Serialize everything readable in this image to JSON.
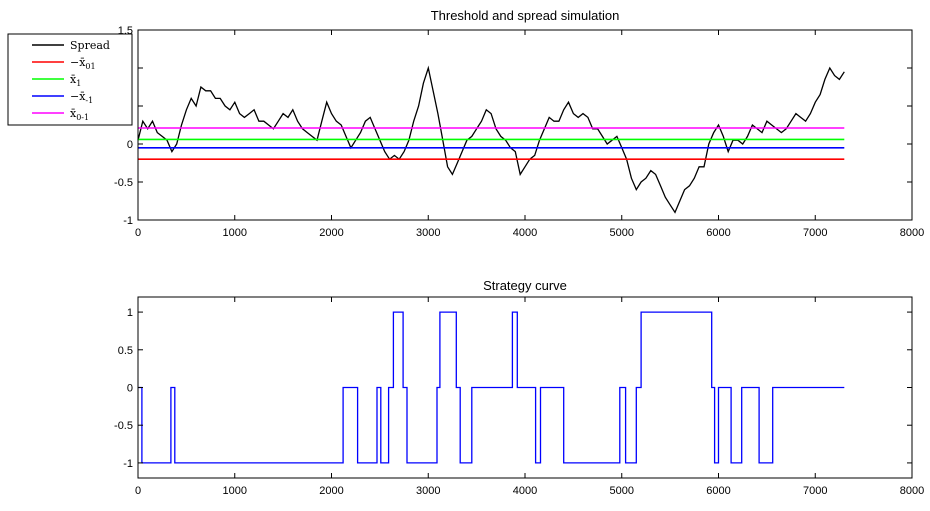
{
  "chart_data": [
    {
      "type": "line",
      "title": "Threshold and spread simulation",
      "xlabel": "",
      "ylabel": "",
      "xlim": [
        0,
        8000
      ],
      "ylim": [
        -1,
        1.5
      ],
      "xticks": [
        "0",
        "1000",
        "2000",
        "3000",
        "4000",
        "5000",
        "6000",
        "7000",
        "8000"
      ],
      "yticks": [
        "-1",
        "-0.5",
        "0",
        "0.5",
        "1",
        "1.5"
      ],
      "legend_position": "outside-top-left",
      "grid": false,
      "series": [
        {
          "name": "Spread",
          "color": "#000000",
          "x": [
            0,
            50,
            100,
            150,
            200,
            250,
            300,
            350,
            400,
            450,
            500,
            550,
            600,
            650,
            700,
            750,
            800,
            850,
            900,
            950,
            1000,
            1050,
            1100,
            1150,
            1200,
            1250,
            1300,
            1350,
            1400,
            1450,
            1500,
            1550,
            1600,
            1650,
            1700,
            1750,
            1800,
            1850,
            1900,
            1950,
            2000,
            2050,
            2100,
            2150,
            2200,
            2250,
            2300,
            2350,
            2400,
            2450,
            2500,
            2550,
            2600,
            2650,
            2700,
            2750,
            2800,
            2850,
            2900,
            2950,
            3000,
            3050,
            3100,
            3150,
            3200,
            3250,
            3300,
            3350,
            3400,
            3450,
            3500,
            3550,
            3600,
            3650,
            3700,
            3750,
            3800,
            3850,
            3900,
            3950,
            4000,
            4050,
            4100,
            4150,
            4200,
            4250,
            4300,
            4350,
            4400,
            4450,
            4500,
            4550,
            4600,
            4650,
            4700,
            4750,
            4800,
            4850,
            4900,
            4950,
            5000,
            5050,
            5100,
            5150,
            5200,
            5250,
            5300,
            5350,
            5400,
            5450,
            5500,
            5550,
            5600,
            5650,
            5700,
            5750,
            5800,
            5850,
            5900,
            5950,
            6000,
            6050,
            6100,
            6150,
            6200,
            6250,
            6300,
            6350,
            6400,
            6450,
            6500,
            6550,
            6600,
            6650,
            6700,
            6750,
            6800,
            6850,
            6900,
            6950,
            7000,
            7050,
            7100,
            7150,
            7200,
            7250,
            7300
          ],
          "y": [
            0.05,
            0.3,
            0.2,
            0.3,
            0.15,
            0.1,
            0.05,
            -0.1,
            0.0,
            0.25,
            0.45,
            0.6,
            0.5,
            0.75,
            0.7,
            0.7,
            0.6,
            0.6,
            0.5,
            0.45,
            0.55,
            0.4,
            0.35,
            0.4,
            0.45,
            0.3,
            0.3,
            0.25,
            0.2,
            0.3,
            0.4,
            0.35,
            0.45,
            0.3,
            0.2,
            0.15,
            0.1,
            0.05,
            0.3,
            0.55,
            0.4,
            0.3,
            0.25,
            0.1,
            -0.05,
            0.05,
            0.15,
            0.3,
            0.35,
            0.2,
            0.05,
            -0.1,
            -0.2,
            -0.15,
            -0.2,
            -0.1,
            0.05,
            0.3,
            0.5,
            0.8,
            1.0,
            0.7,
            0.4,
            0.05,
            -0.3,
            -0.4,
            -0.25,
            -0.1,
            0.05,
            0.1,
            0.2,
            0.3,
            0.45,
            0.4,
            0.2,
            0.1,
            0.05,
            -0.05,
            -0.1,
            -0.4,
            -0.3,
            -0.2,
            -0.15,
            0.05,
            0.2,
            0.35,
            0.3,
            0.3,
            0.45,
            0.55,
            0.4,
            0.35,
            0.4,
            0.35,
            0.2,
            0.2,
            0.1,
            0.0,
            0.05,
            0.1,
            -0.05,
            -0.2,
            -0.45,
            -0.6,
            -0.5,
            -0.45,
            -0.35,
            -0.4,
            -0.55,
            -0.7,
            -0.8,
            -0.9,
            -0.75,
            -0.6,
            -0.55,
            -0.45,
            -0.3,
            -0.3,
            0.0,
            0.15,
            0.25,
            0.1,
            -0.1,
            0.05,
            0.05,
            0.0,
            0.1,
            0.25,
            0.2,
            0.15,
            0.3,
            0.25,
            0.2,
            0.15,
            0.2,
            0.3,
            0.4,
            0.35,
            0.3,
            0.4,
            0.55,
            0.65,
            0.85,
            1.0,
            0.9,
            0.85,
            0.95
          ]
        },
        {
          "name": "-x̄01",
          "legend_symbol": "−x̄",
          "legend_sub": "01",
          "color": "#ff0000",
          "x": [
            0,
            7300
          ],
          "y": [
            -0.2,
            -0.2
          ]
        },
        {
          "name": "x̄1",
          "legend_symbol": "x̄",
          "legend_sub": "1",
          "color": "#00ff00",
          "x": [
            0,
            7300
          ],
          "y": [
            0.06,
            0.06
          ]
        },
        {
          "name": "-x̄-1",
          "legend_symbol": "−x̄",
          "legend_sub": "-1",
          "color": "#0000ff",
          "x": [
            0,
            7300
          ],
          "y": [
            -0.05,
            -0.05
          ]
        },
        {
          "name": "x̄0-1",
          "legend_symbol": "x̄",
          "legend_sub": "0-1",
          "color": "#ff00ff",
          "x": [
            0,
            7300
          ],
          "y": [
            0.21,
            0.21
          ]
        }
      ]
    },
    {
      "type": "line",
      "title": "Strategy curve",
      "xlabel": "",
      "ylabel": "",
      "xlim": [
        0,
        8000
      ],
      "ylim": [
        -1.2,
        1.2
      ],
      "xticks": [
        "0",
        "1000",
        "2000",
        "3000",
        "4000",
        "5000",
        "6000",
        "7000",
        "8000"
      ],
      "yticks": [
        "-1",
        "-0.5",
        "0",
        "0.5",
        "1"
      ],
      "grid": false,
      "series": [
        {
          "name": "",
          "color": "#0000ff",
          "x": [
            0,
            40,
            40,
            340,
            340,
            380,
            380,
            2120,
            2120,
            2270,
            2270,
            2470,
            2470,
            2510,
            2510,
            2590,
            2590,
            2640,
            2640,
            2740,
            2740,
            2780,
            2780,
            3090,
            3090,
            3120,
            3120,
            3290,
            3290,
            3330,
            3330,
            3450,
            3450,
            3870,
            3870,
            3920,
            3920,
            4110,
            4110,
            4160,
            4160,
            4400,
            4400,
            4980,
            4980,
            5040,
            5040,
            5150,
            5150,
            5200,
            5200,
            5930,
            5930,
            5960,
            5960,
            6000,
            6000,
            6130,
            6130,
            6240,
            6240,
            6420,
            6420,
            6560,
            6560,
            7300
          ],
          "y": [
            0,
            0,
            -1,
            -1,
            0,
            0,
            -1,
            -1,
            0,
            0,
            -1,
            -1,
            0,
            0,
            -1,
            -1,
            0,
            0,
            1,
            1,
            0,
            0,
            -1,
            -1,
            0,
            0,
            1,
            1,
            0,
            0,
            -1,
            -1,
            0,
            0,
            1,
            1,
            0,
            0,
            -1,
            -1,
            0,
            0,
            -1,
            -1,
            0,
            0,
            -1,
            -1,
            0,
            0,
            1,
            1,
            0,
            0,
            -1,
            -1,
            0,
            0,
            -1,
            -1,
            0,
            0,
            -1,
            -1,
            0,
            0
          ]
        }
      ]
    }
  ]
}
